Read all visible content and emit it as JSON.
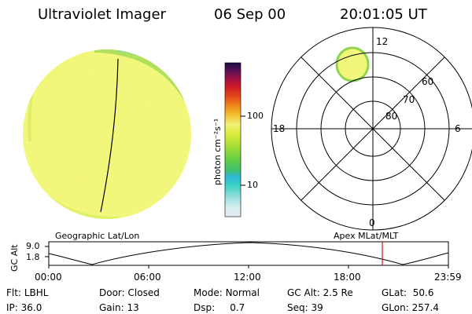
{
  "header": {
    "instrument": "Ultraviolet Imager",
    "date": "06 Sep 00",
    "time": "20:01:05 UT"
  },
  "colorbar": {
    "unit_label": "photon cm⁻²s⁻¹",
    "ticks": [
      "100",
      "10"
    ],
    "scale": "log"
  },
  "polar_plot": {
    "mlt_labels": {
      "top": "12",
      "left": "18",
      "right": "6",
      "bottom": "0"
    },
    "lat_labels": [
      "60",
      "70",
      "80"
    ]
  },
  "altitude_plot": {
    "left_label": "Geographic Lat/Lon",
    "right_label": "Apex MLat/MLT",
    "y_axis_label": "GC Alt",
    "y_ticks": [
      "9.0",
      "1.8"
    ],
    "x_ticks": [
      "00:00",
      "06:00",
      "12:00",
      "18:00",
      "23:59"
    ],
    "current_time_hours": 20.02,
    "marker_color": "#d01010"
  },
  "status": {
    "row1": [
      {
        "label": "Flt:",
        "value": "LBHL"
      },
      {
        "label": "Door:",
        "value": "Closed"
      },
      {
        "label": "Mode:",
        "value": "Normal"
      },
      {
        "label": "GC Alt:",
        "value": "2.5 Re"
      },
      {
        "label": "GLat:",
        "value": "50.6"
      }
    ],
    "row2": [
      {
        "label": "IP:",
        "value": "36.0"
      },
      {
        "label": "Gain:",
        "value": "13"
      },
      {
        "label": "Dsp:",
        "value": "0.7"
      },
      {
        "label": "Seq:",
        "value": "39"
      },
      {
        "label": "GLon:",
        "value": "257.4"
      }
    ]
  },
  "colors": {
    "earth_fill": "#f2f77a",
    "earth_speckle": "#e6ef4a",
    "limb_green": "#8bd44a",
    "colorbar": [
      "#e8e8ee",
      "#bfe6e6",
      "#5fd2c8",
      "#2fa0d0",
      "#3fbf60",
      "#8fd63a",
      "#d8ea3a",
      "#f0f060",
      "#f3b020",
      "#ee6a18",
      "#d82020",
      "#a01040",
      "#6a1060",
      "#20104a"
    ]
  }
}
